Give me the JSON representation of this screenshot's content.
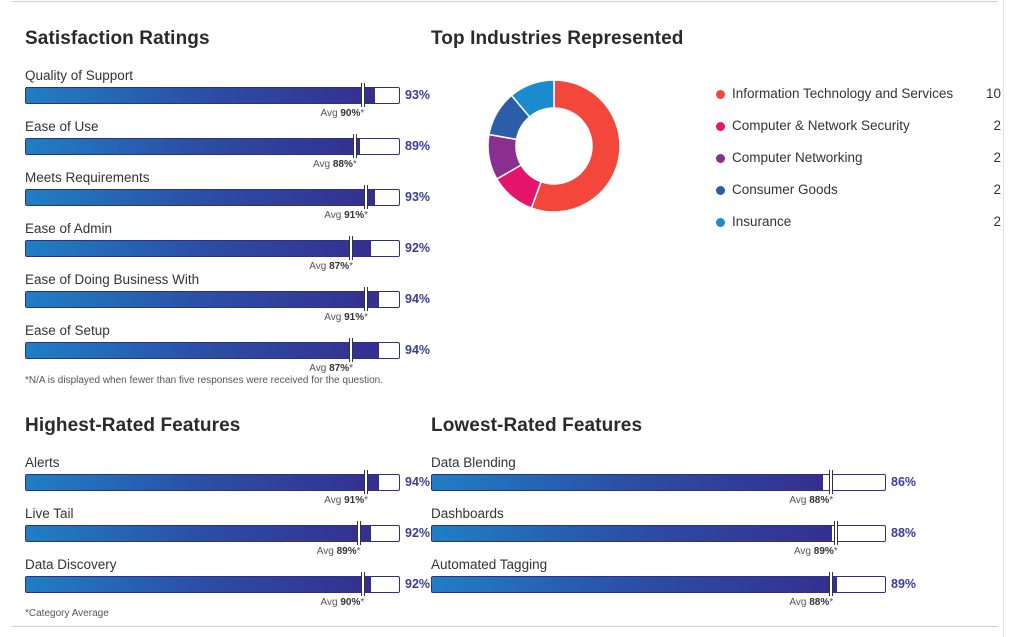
{
  "satisfaction": {
    "title": "Satisfaction Ratings",
    "ratings": [
      {
        "label": "Quality of Support",
        "value": "93%",
        "avg_prefix": "Avg",
        "avg_value": "90%",
        "avg_suffix": "*",
        "score": 93,
        "avg": 90
      },
      {
        "label": "Ease of Use",
        "value": "89%",
        "avg_prefix": "Avg",
        "avg_value": "88%",
        "avg_suffix": "*",
        "score": 89,
        "avg": 88
      },
      {
        "label": "Meets Requirements",
        "value": "93%",
        "avg_prefix": "Avg",
        "avg_value": "91%",
        "avg_suffix": "*",
        "score": 93,
        "avg": 91
      },
      {
        "label": "Ease of Admin",
        "value": "92%",
        "avg_prefix": "Avg",
        "avg_value": "87%",
        "avg_suffix": "*",
        "score": 92,
        "avg": 87
      },
      {
        "label": "Ease of Doing Business With",
        "value": "94%",
        "avg_prefix": "Avg",
        "avg_value": "91%",
        "avg_suffix": "*",
        "score": 94,
        "avg": 91
      },
      {
        "label": "Ease of Setup",
        "value": "94%",
        "avg_prefix": "Avg",
        "avg_value": "87%",
        "avg_suffix": "*",
        "score": 94,
        "avg": 87
      }
    ],
    "note": "*N/A is displayed when fewer than five responses were received for the question."
  },
  "industries": {
    "title": "Top Industries Represented",
    "items": [
      {
        "name": "Information Technology and Services",
        "count": "10",
        "color": "#f2473a"
      },
      {
        "name": "Computer & Network Security",
        "count": "2",
        "color": "#e5156e"
      },
      {
        "name": "Computer Networking",
        "count": "2",
        "color": "#8a2e8f"
      },
      {
        "name": "Consumer Goods",
        "count": "2",
        "color": "#2b5ea8"
      },
      {
        "name": "Insurance",
        "count": "2",
        "color": "#1a8ccd"
      }
    ]
  },
  "highest": {
    "title": "Highest-Rated Features",
    "ratings": [
      {
        "label": "Alerts",
        "value": "94%",
        "avg_prefix": "Avg",
        "avg_value": "91%",
        "avg_suffix": "*",
        "score": 94,
        "avg": 91
      },
      {
        "label": "Live Tail",
        "value": "92%",
        "avg_prefix": "Avg",
        "avg_value": "89%",
        "avg_suffix": "*",
        "score": 92,
        "avg": 89
      },
      {
        "label": "Data Discovery",
        "value": "92%",
        "avg_prefix": "Avg",
        "avg_value": "90%",
        "avg_suffix": "*",
        "score": 92,
        "avg": 90
      }
    ],
    "note": "*Category Average"
  },
  "lowest": {
    "title": "Lowest-Rated Features",
    "ratings": [
      {
        "label": "Data Blending",
        "value": "86%",
        "avg_prefix": "Avg",
        "avg_value": "88%",
        "avg_suffix": "*",
        "score": 86,
        "avg": 88
      },
      {
        "label": "Dashboards",
        "value": "88%",
        "avg_prefix": "Avg",
        "avg_value": "89%",
        "avg_suffix": "*",
        "score": 88,
        "avg": 89
      },
      {
        "label": "Automated Tagging",
        "value": "89%",
        "avg_prefix": "Avg",
        "avg_value": "88%",
        "avg_suffix": "*",
        "score": 89,
        "avg": 88
      }
    ]
  }
}
